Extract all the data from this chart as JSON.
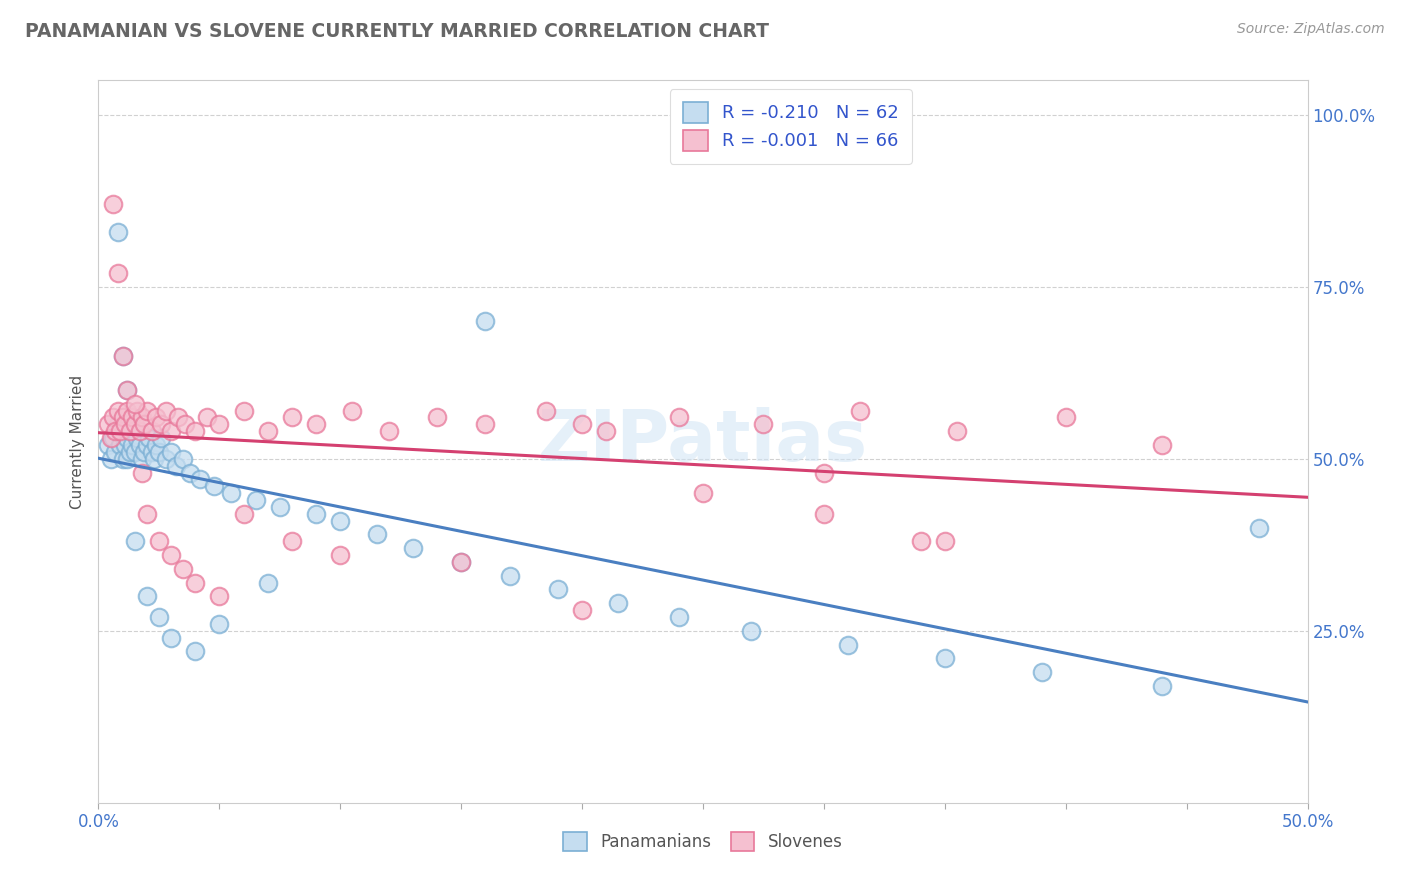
{
  "title": "PANAMANIAN VS SLOVENE CURRENTLY MARRIED CORRELATION CHART",
  "source_text": "Source: ZipAtlas.com",
  "ylabel": "Currently Married",
  "xlim": [
    0.0,
    0.5
  ],
  "ylim": [
    0.0,
    1.05
  ],
  "xtick_positions": [
    0.0,
    0.05,
    0.1,
    0.15,
    0.2,
    0.25,
    0.3,
    0.35,
    0.4,
    0.45,
    0.5
  ],
  "xtick_labels": [
    "0.0%",
    "",
    "",
    "",
    "",
    "",
    "",
    "",
    "",
    "",
    "50.0%"
  ],
  "ytick_vals": [
    0.25,
    0.5,
    0.75,
    1.0
  ],
  "ytick_labels": [
    "25.0%",
    "50.0%",
    "75.0%",
    "100.0%"
  ],
  "pan_R": -0.21,
  "pan_N": 62,
  "slo_R": -0.001,
  "slo_N": 66,
  "pan_color": "#7bafd4",
  "pan_face_color": "#c5ddf0",
  "pan_line_color": "#4a7fc1",
  "slo_color": "#e8789a",
  "slo_face_color": "#f5c0d0",
  "slo_line_color": "#d44070",
  "watermark": "ZIPatlas",
  "legend_label_pan": "R = -0.210   N = 62",
  "legend_label_slo": "R = -0.001   N = 66",
  "bottom_label_pan": "Panamanians",
  "bottom_label_slo": "Slovenes",
  "pan_x": [
    0.004,
    0.005,
    0.006,
    0.007,
    0.008,
    0.009,
    0.01,
    0.01,
    0.011,
    0.012,
    0.012,
    0.013,
    0.013,
    0.014,
    0.015,
    0.016,
    0.017,
    0.018,
    0.019,
    0.02,
    0.021,
    0.022,
    0.023,
    0.024,
    0.025,
    0.026,
    0.028,
    0.03,
    0.032,
    0.035,
    0.038,
    0.042,
    0.048,
    0.055,
    0.065,
    0.075,
    0.09,
    0.1,
    0.115,
    0.13,
    0.15,
    0.17,
    0.19,
    0.215,
    0.24,
    0.27,
    0.31,
    0.35,
    0.39,
    0.44,
    0.008,
    0.01,
    0.012,
    0.015,
    0.02,
    0.025,
    0.03,
    0.04,
    0.05,
    0.07,
    0.16,
    0.48
  ],
  "pan_y": [
    0.52,
    0.5,
    0.53,
    0.51,
    0.55,
    0.52,
    0.5,
    0.54,
    0.52,
    0.5,
    0.53,
    0.51,
    0.54,
    0.52,
    0.51,
    0.53,
    0.52,
    0.5,
    0.51,
    0.52,
    0.53,
    0.51,
    0.5,
    0.52,
    0.51,
    0.53,
    0.5,
    0.51,
    0.49,
    0.5,
    0.48,
    0.47,
    0.46,
    0.45,
    0.44,
    0.43,
    0.42,
    0.41,
    0.39,
    0.37,
    0.35,
    0.33,
    0.31,
    0.29,
    0.27,
    0.25,
    0.23,
    0.21,
    0.19,
    0.17,
    0.83,
    0.65,
    0.6,
    0.38,
    0.3,
    0.27,
    0.24,
    0.22,
    0.26,
    0.32,
    0.7,
    0.4
  ],
  "slo_x": [
    0.004,
    0.005,
    0.006,
    0.007,
    0.008,
    0.009,
    0.01,
    0.011,
    0.012,
    0.013,
    0.014,
    0.015,
    0.016,
    0.017,
    0.018,
    0.019,
    0.02,
    0.022,
    0.024,
    0.026,
    0.028,
    0.03,
    0.033,
    0.036,
    0.04,
    0.045,
    0.05,
    0.06,
    0.07,
    0.08,
    0.09,
    0.105,
    0.12,
    0.14,
    0.16,
    0.185,
    0.21,
    0.24,
    0.275,
    0.315,
    0.355,
    0.4,
    0.44,
    0.006,
    0.008,
    0.01,
    0.012,
    0.015,
    0.018,
    0.02,
    0.025,
    0.03,
    0.035,
    0.04,
    0.05,
    0.06,
    0.08,
    0.1,
    0.15,
    0.2,
    0.3,
    0.34,
    0.2,
    0.25,
    0.3,
    0.35
  ],
  "slo_y": [
    0.55,
    0.53,
    0.56,
    0.54,
    0.57,
    0.54,
    0.56,
    0.55,
    0.57,
    0.54,
    0.56,
    0.55,
    0.57,
    0.54,
    0.56,
    0.55,
    0.57,
    0.54,
    0.56,
    0.55,
    0.57,
    0.54,
    0.56,
    0.55,
    0.54,
    0.56,
    0.55,
    0.57,
    0.54,
    0.56,
    0.55,
    0.57,
    0.54,
    0.56,
    0.55,
    0.57,
    0.54,
    0.56,
    0.55,
    0.57,
    0.54,
    0.56,
    0.52,
    0.87,
    0.77,
    0.65,
    0.6,
    0.58,
    0.48,
    0.42,
    0.38,
    0.36,
    0.34,
    0.32,
    0.3,
    0.42,
    0.38,
    0.36,
    0.35,
    0.55,
    0.42,
    0.38,
    0.28,
    0.45,
    0.48,
    0.38
  ]
}
